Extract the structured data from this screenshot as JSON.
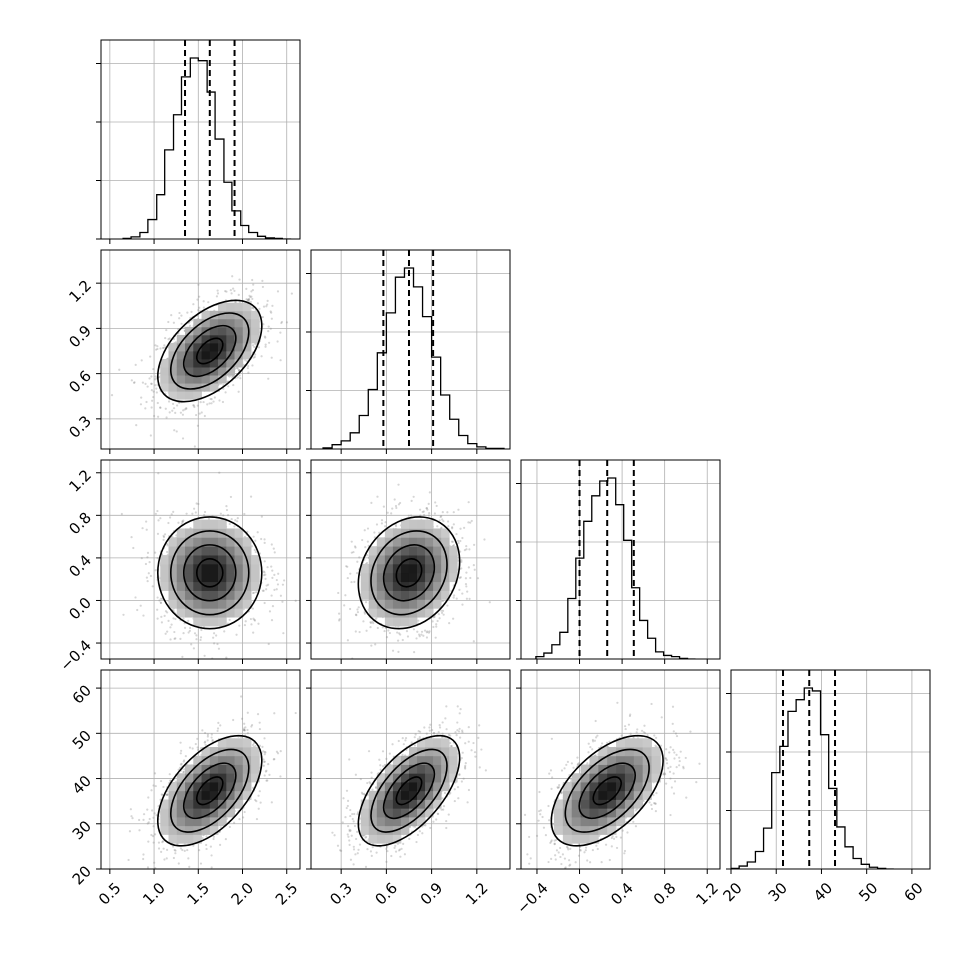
{
  "chart_data": {
    "type": "corner",
    "parameters": [
      {
        "range": [
          0.4,
          2.65
        ],
        "ticks": [
          {
            "v": 0.5,
            "t": "0.5"
          },
          {
            "v": 1.0,
            "t": "1.0"
          },
          {
            "v": 1.5,
            "t": "1.5"
          },
          {
            "v": 2.0,
            "t": "2.0"
          },
          {
            "v": 2.5,
            "t": "2.5"
          }
        ],
        "quantiles": [
          1.35,
          1.63,
          1.91
        ]
      },
      {
        "range": [
          0.1,
          1.42
        ],
        "ticks": [
          {
            "v": 0.3,
            "t": "0.3"
          },
          {
            "v": 0.6,
            "t": "0.6"
          },
          {
            "v": 0.9,
            "t": "0.9"
          },
          {
            "v": 1.2,
            "t": "1.2"
          }
        ],
        "quantiles": [
          0.58,
          0.75,
          0.91
        ]
      },
      {
        "range": [
          -0.55,
          1.32
        ],
        "ticks": [
          {
            "v": -0.4,
            "t": "−0.4"
          },
          {
            "v": 0.0,
            "t": "0.0"
          },
          {
            "v": 0.4,
            "t": "0.4"
          },
          {
            "v": 0.8,
            "t": "0.8"
          },
          {
            "v": 1.2,
            "t": "1.2"
          }
        ],
        "quantiles": [
          0.0,
          0.26,
          0.51
        ]
      },
      {
        "range": [
          20,
          64
        ],
        "ticks": [
          {
            "v": 20,
            "t": "20"
          },
          {
            "v": 30,
            "t": "30"
          },
          {
            "v": 40,
            "t": "40"
          },
          {
            "v": 50,
            "t": "50"
          },
          {
            "v": 60,
            "t": "60"
          }
        ],
        "quantiles": [
          31.5,
          37.3,
          43.0
        ]
      }
    ],
    "histograms": [
      {
        "edges": [
          0.65,
          0.74,
          0.84,
          0.93,
          1.03,
          1.12,
          1.22,
          1.31,
          1.41,
          1.5,
          1.6,
          1.69,
          1.79,
          1.88,
          1.98,
          2.07,
          2.17,
          2.26,
          2.36,
          2.45,
          2.55
        ],
        "counts": [
          1,
          4,
          12,
          36,
          82,
          165,
          230,
          300,
          335,
          330,
          272,
          185,
          105,
          52,
          25,
          12,
          5,
          2,
          1,
          0
        ]
      },
      {
        "edges": [
          0.18,
          0.24,
          0.3,
          0.36,
          0.42,
          0.48,
          0.54,
          0.6,
          0.66,
          0.72,
          0.78,
          0.84,
          0.9,
          0.96,
          1.02,
          1.08,
          1.14,
          1.2,
          1.26,
          1.32,
          1.38
        ],
        "counts": [
          2,
          8,
          15,
          30,
          62,
          110,
          178,
          252,
          318,
          335,
          300,
          245,
          170,
          100,
          55,
          25,
          10,
          4,
          1,
          1
        ]
      },
      {
        "edges": [
          -0.41,
          -0.335,
          -0.26,
          -0.185,
          -0.11,
          -0.035,
          0.04,
          0.115,
          0.19,
          0.265,
          0.34,
          0.415,
          0.49,
          0.565,
          0.64,
          0.715,
          0.79,
          0.865,
          0.94,
          1.015,
          1.09
        ],
        "counts": [
          4,
          10,
          24,
          45,
          102,
          170,
          232,
          275,
          300,
          305,
          260,
          200,
          120,
          65,
          35,
          12,
          6,
          4,
          1,
          0
        ]
      },
      {
        "edges": [
          20,
          21.8,
          23.6,
          25.4,
          27.2,
          29,
          30.8,
          32.6,
          34.4,
          36.2,
          38,
          39.8,
          41.6,
          43.4,
          45.2,
          47,
          48.8,
          50.6,
          52.4,
          54.2,
          56
        ],
        "counts": [
          1,
          5,
          12,
          30,
          70,
          165,
          210,
          270,
          290,
          310,
          305,
          230,
          138,
          72,
          38,
          18,
          8,
          3,
          1,
          0
        ]
      }
    ],
    "pairs": [
      {
        "x": 0,
        "y": 1,
        "center": [
          1.63,
          0.75
        ],
        "sd": [
          0.28,
          0.16
        ],
        "rho": 0.5
      },
      {
        "x": 0,
        "y": 2,
        "center": [
          1.63,
          0.26
        ],
        "sd": [
          0.28,
          0.25
        ],
        "rho": 0.0
      },
      {
        "x": 1,
        "y": 2,
        "center": [
          0.75,
          0.26
        ],
        "sd": [
          0.16,
          0.25
        ],
        "rho": 0.2
      },
      {
        "x": 0,
        "y": 3,
        "center": [
          1.63,
          37.3
        ],
        "sd": [
          0.28,
          5.8
        ],
        "rho": 0.55
      },
      {
        "x": 1,
        "y": 3,
        "center": [
          0.75,
          37.3
        ],
        "sd": [
          0.16,
          5.8
        ],
        "rho": 0.6
      },
      {
        "x": 2,
        "y": 3,
        "center": [
          0.26,
          37.3
        ],
        "sd": [
          0.25,
          5.8
        ],
        "rho": 0.55
      }
    ],
    "contour_levels_sigma": [
      0.5,
      1.0,
      1.5,
      2.0
    ],
    "grid": true,
    "scatter_color": "#8a8a8a",
    "line_color": "#000000"
  }
}
